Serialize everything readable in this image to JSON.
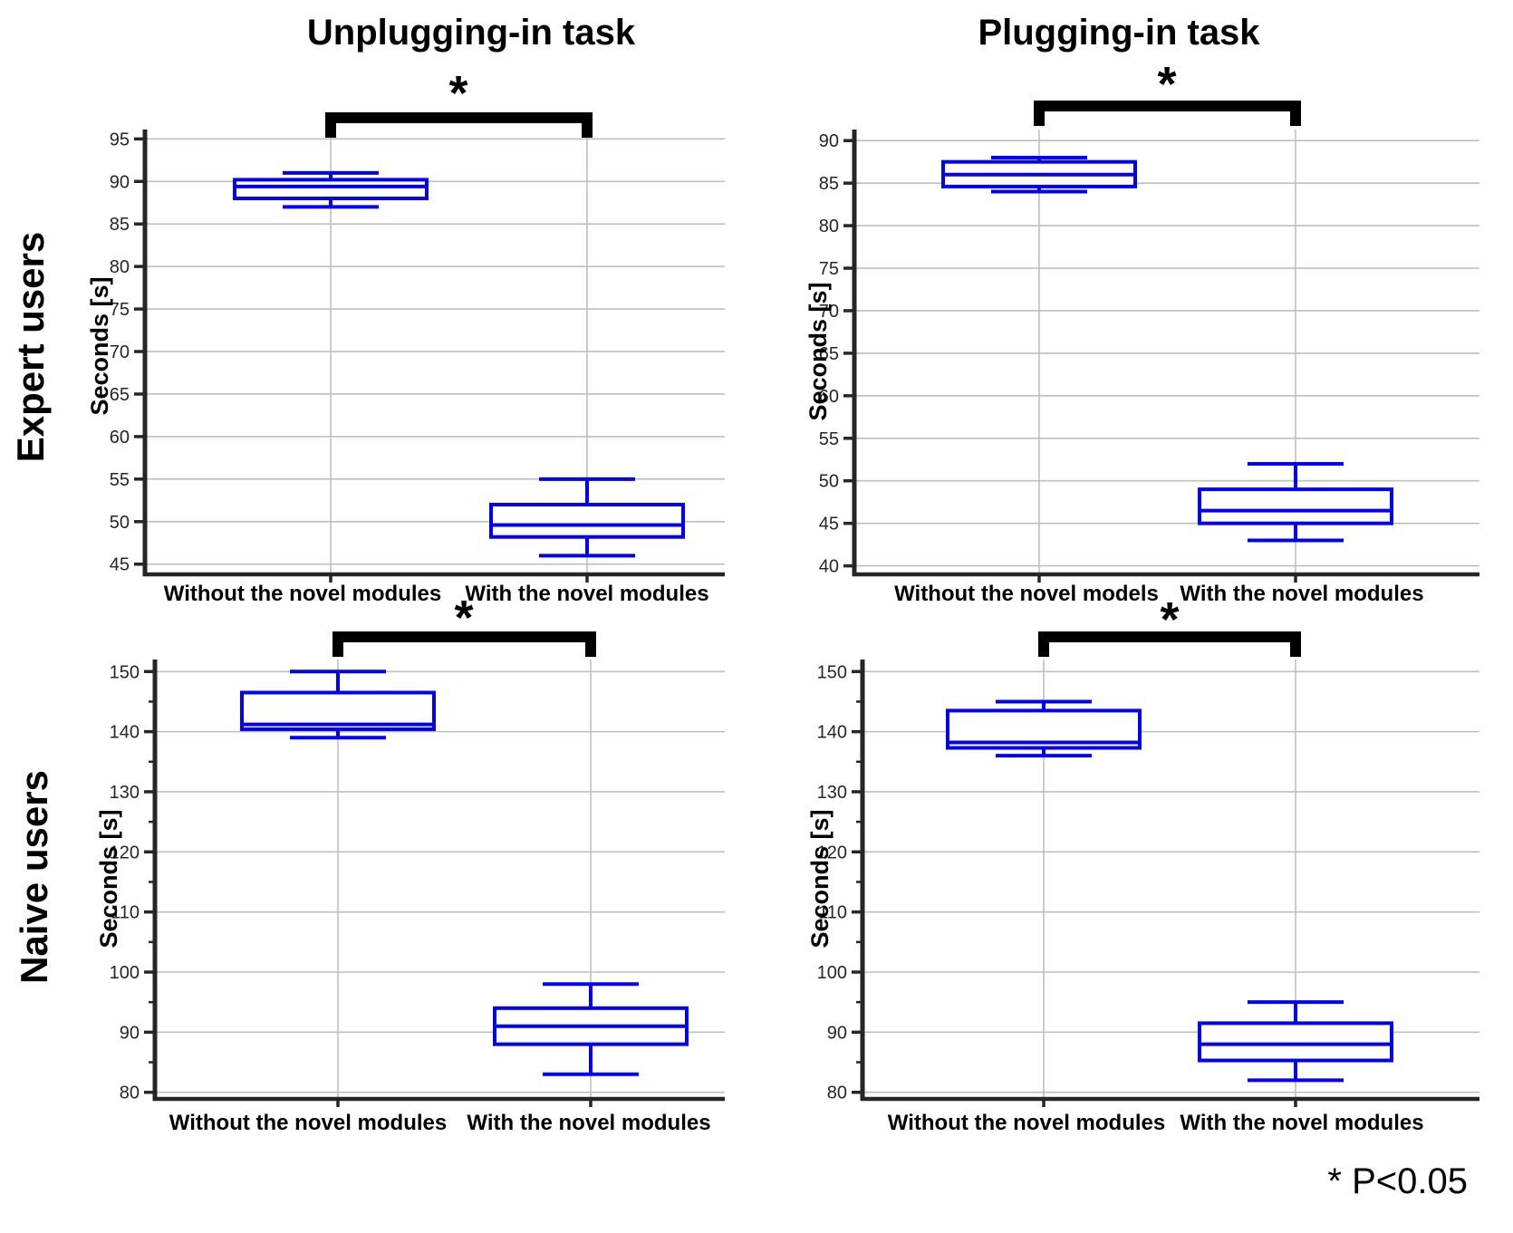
{
  "figure": {
    "columns": [
      "Unplugging-in task",
      "Plugging-in task"
    ],
    "rows": [
      "Expert users",
      "Naive users"
    ],
    "footnote": "* P<0.05",
    "sig_star": "*"
  },
  "colors": {
    "box": "#0202f0",
    "grid": "#bfbfbf",
    "axis": "#262626",
    "sig": "#000000"
  },
  "chart_data": [
    {
      "type": "boxplot",
      "row": "Expert users",
      "column": "Unplugging-in task",
      "ylabel": "Seconds [s]",
      "ylim": [
        43.8,
        96.1
      ],
      "yticks": [
        45,
        50,
        55,
        60,
        65,
        70,
        75,
        80,
        85,
        90,
        95
      ],
      "yticks_minor": [],
      "categories": [
        "Without the novel modules",
        "With the novel modules"
      ],
      "boxes": [
        {
          "whisker_low": 87,
          "q1": 88,
          "median": 89.4,
          "q3": 90.2,
          "whisker_high": 91
        },
        {
          "whisker_low": 46,
          "q1": 48.2,
          "median": 49.6,
          "q3": 52,
          "whisker_high": 55
        }
      ],
      "significant": true
    },
    {
      "type": "boxplot",
      "row": "Expert users",
      "column": "Plugging-in task",
      "ylabel": "Seconds [s]",
      "ylim": [
        39.0,
        91.3
      ],
      "yticks": [
        40,
        45,
        50,
        55,
        60,
        65,
        70,
        75,
        80,
        85,
        90
      ],
      "yticks_minor": [],
      "categories": [
        "Without the novel models",
        "With the novel modules"
      ],
      "boxes": [
        {
          "whisker_low": 84,
          "q1": 84.6,
          "median": 86,
          "q3": 87.5,
          "whisker_high": 88
        },
        {
          "whisker_low": 43,
          "q1": 45,
          "median": 46.5,
          "q3": 49,
          "whisker_high": 52
        }
      ],
      "significant": true
    },
    {
      "type": "boxplot",
      "row": "Naive users",
      "column": "Unplugging-in task",
      "ylabel": "Seconds [s]",
      "ylim": [
        78.9,
        152.0
      ],
      "yticks": [
        80,
        90,
        100,
        110,
        120,
        130,
        140,
        150
      ],
      "yticks_minor": [
        85,
        95,
        105,
        115,
        125,
        135,
        145
      ],
      "categories": [
        "Without the novel modules",
        "With the novel modules"
      ],
      "boxes": [
        {
          "whisker_low": 139,
          "q1": 140.4,
          "median": 141.2,
          "q3": 146.5,
          "whisker_high": 150
        },
        {
          "whisker_low": 83,
          "q1": 88,
          "median": 91,
          "q3": 94,
          "whisker_high": 98
        }
      ],
      "significant": true
    },
    {
      "type": "boxplot",
      "row": "Naive users",
      "column": "Plugging-in task",
      "ylabel": "Seconds [s]",
      "ylim": [
        78.9,
        152.0
      ],
      "yticks": [
        80,
        90,
        100,
        110,
        120,
        130,
        140,
        150
      ],
      "yticks_minor": [
        85,
        95,
        105,
        115,
        125,
        135,
        145
      ],
      "categories": [
        "Without the novel modules",
        "With the novel modules"
      ],
      "boxes": [
        {
          "whisker_low": 136,
          "q1": 137.3,
          "median": 138.2,
          "q3": 143.5,
          "whisker_high": 145
        },
        {
          "whisker_low": 82,
          "q1": 85.3,
          "median": 88,
          "q3": 91.5,
          "whisker_high": 95
        }
      ],
      "significant": true
    }
  ]
}
